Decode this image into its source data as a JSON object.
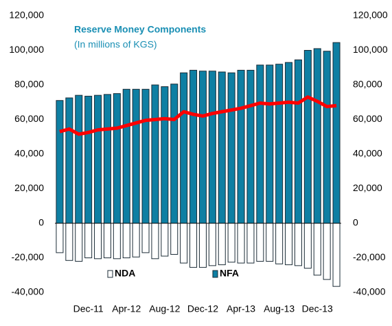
{
  "chart_data": {
    "type": "bar",
    "title": "Reserve Money Components",
    "subtitle": "(In millions of KGS)",
    "categories": [
      null,
      null,
      null,
      "Dec-11",
      null,
      null,
      null,
      "Apr-12",
      null,
      null,
      null,
      "Aug-12",
      null,
      null,
      null,
      "Dec-12",
      null,
      null,
      null,
      "Apr-13",
      null,
      null,
      null,
      "Aug-13",
      null,
      null,
      null,
      "Dec-13",
      null,
      null
    ],
    "series": [
      {
        "name": "NFA",
        "color": "#0e7fa3",
        "values": [
          71000,
          72500,
          74000,
          73500,
          74000,
          74500,
          75000,
          77500,
          77500,
          77500,
          80000,
          79000,
          80500,
          87000,
          88500,
          88000,
          88000,
          87500,
          87000,
          88500,
          88500,
          91500,
          91500,
          92000,
          93000,
          94500,
          100000,
          101000,
          99500,
          104500
        ]
      },
      {
        "name": "NDA",
        "color": "#ffffff",
        "values": [
          -17000,
          -21500,
          -22000,
          -20000,
          -20500,
          -20000,
          -20500,
          -20000,
          -19500,
          -17000,
          -20500,
          -19000,
          -18000,
          -23000,
          -25500,
          -25500,
          -24500,
          -24000,
          -22500,
          -23000,
          -23000,
          -22000,
          -22000,
          -23500,
          -24000,
          -24500,
          -26000,
          -30000,
          -32500,
          -36500
        ]
      },
      {
        "type": "line",
        "color": "#ff0000",
        "values": [
          53000,
          54500,
          51500,
          52500,
          54000,
          54500,
          55000,
          56500,
          58000,
          59500,
          60000,
          60500,
          60000,
          64500,
          63000,
          62000,
          63500,
          64500,
          65500,
          66500,
          68000,
          69500,
          69000,
          69500,
          70000,
          69500,
          73000,
          70500,
          67500,
          68000
        ]
      }
    ],
    "ylim": [
      -40000,
      120000
    ],
    "yticks": [
      {
        "value": -40000,
        "label": "-40,000"
      },
      {
        "value": -20000,
        "label": "-20,000"
      },
      0,
      {
        "value": 20000,
        "label": "20,000"
      },
      {
        "value": 40000,
        "label": "40,000"
      },
      {
        "value": 60000,
        "label": "60,000"
      },
      {
        "value": 80000,
        "label": "80,000"
      },
      {
        "value": 100000,
        "label": "100,000"
      },
      {
        "value": 120000,
        "label": "120,000"
      }
    ],
    "y2lim": [
      -40000,
      120000
    ],
    "y2ticks": [
      {
        "value": -40000,
        "label": "-40,000"
      },
      {
        "value": -20000,
        "label": "-20,000"
      },
      0,
      {
        "value": 20000,
        "label": "20,000"
      },
      {
        "value": 40000,
        "label": "40,000"
      },
      {
        "value": 60000,
        "label": "60,000"
      },
      {
        "value": 80000,
        "label": "80,000"
      },
      {
        "value": 100000,
        "label": "100,000"
      },
      {
        "value": 120000,
        "label": "120,000"
      }
    ]
  }
}
